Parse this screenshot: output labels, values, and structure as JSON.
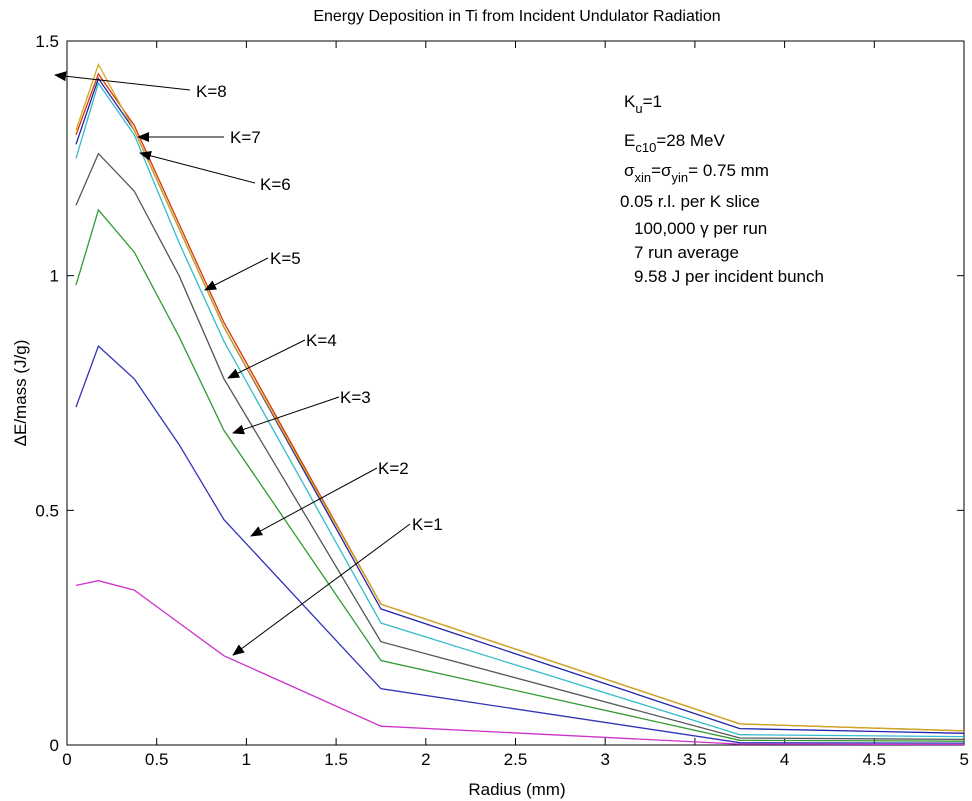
{
  "chart_data": {
    "type": "line",
    "title": "Energy Deposition in Ti from Incident Undulator Radiation",
    "xlabel": "Radius (mm)",
    "ylabel": "ΔE/mass (J/g)",
    "xlim": [
      0,
      5
    ],
    "ylim": [
      0,
      1.5
    ],
    "xticks": [
      "0",
      "0.5",
      "1",
      "1.5",
      "2",
      "2.5",
      "3",
      "3.5",
      "4",
      "4.5",
      "5"
    ],
    "yticks": [
      "0",
      "0.5",
      "1",
      "1.5"
    ],
    "grid": false,
    "x": [
      0.05,
      0.175,
      0.375,
      0.625,
      0.875,
      1.75,
      3.75,
      5.0
    ],
    "series": [
      {
        "name": "K=1",
        "color": "#cc33cc",
        "values": [
          0.34,
          0.35,
          0.33,
          0.26,
          0.19,
          0.04,
          0.002,
          0.001
        ]
      },
      {
        "name": "K=2",
        "color": "#3333bb",
        "values": [
          0.72,
          0.85,
          0.78,
          0.64,
          0.48,
          0.12,
          0.005,
          0.004
        ]
      },
      {
        "name": "K=3",
        "color": "#339933",
        "values": [
          0.98,
          1.14,
          1.05,
          0.87,
          0.67,
          0.18,
          0.01,
          0.008
        ]
      },
      {
        "name": "K=4",
        "color": "#555555",
        "values": [
          1.15,
          1.26,
          1.18,
          1.0,
          0.78,
          0.22,
          0.015,
          0.012
        ]
      },
      {
        "name": "K=5",
        "color": "#33bbcc",
        "values": [
          1.25,
          1.41,
          1.3,
          1.07,
          0.86,
          0.26,
          0.022,
          0.018
        ]
      },
      {
        "name": "K=6",
        "color": "#2222aa",
        "values": [
          1.28,
          1.42,
          1.31,
          1.1,
          0.89,
          0.29,
          0.035,
          0.025
        ]
      },
      {
        "name": "K=7",
        "color": "#dd3300",
        "values": [
          1.3,
          1.43,
          1.32,
          1.11,
          0.9,
          0.3,
          0.045,
          0.03
        ]
      },
      {
        "name": "K=8",
        "color": "#ccaa22",
        "values": [
          1.31,
          1.45,
          1.31,
          1.1,
          0.89,
          0.3,
          0.045,
          0.03
        ]
      }
    ],
    "annotation_lines": [
      "K_u=1",
      "E_c10=28 MeV",
      "σ_xin=σ_yin= 0.75 mm",
      "0.05 r.l. per K slice",
      "100,000 γ per run",
      "7 run average",
      "9.58 J per incident bunch"
    ]
  },
  "texts": {
    "ann_K": "K",
    "ann_u": "u",
    "ann_eq1": "=1",
    "ann_E": "E",
    "ann_c10": "c10",
    "ann_eq2": "=28 MeV",
    "ann_sigma1": "σ",
    "ann_xin": "xin",
    "ann_eq3": "=σ",
    "ann_yin": "yin",
    "ann_eq4": "= 0.75 mm",
    "ann_line4": "0.05 r.l. per K slice",
    "ann_line5": "100,000 γ per run",
    "ann_line6": "7 run average",
    "ann_line7": "9.58 J per incident bunch"
  }
}
